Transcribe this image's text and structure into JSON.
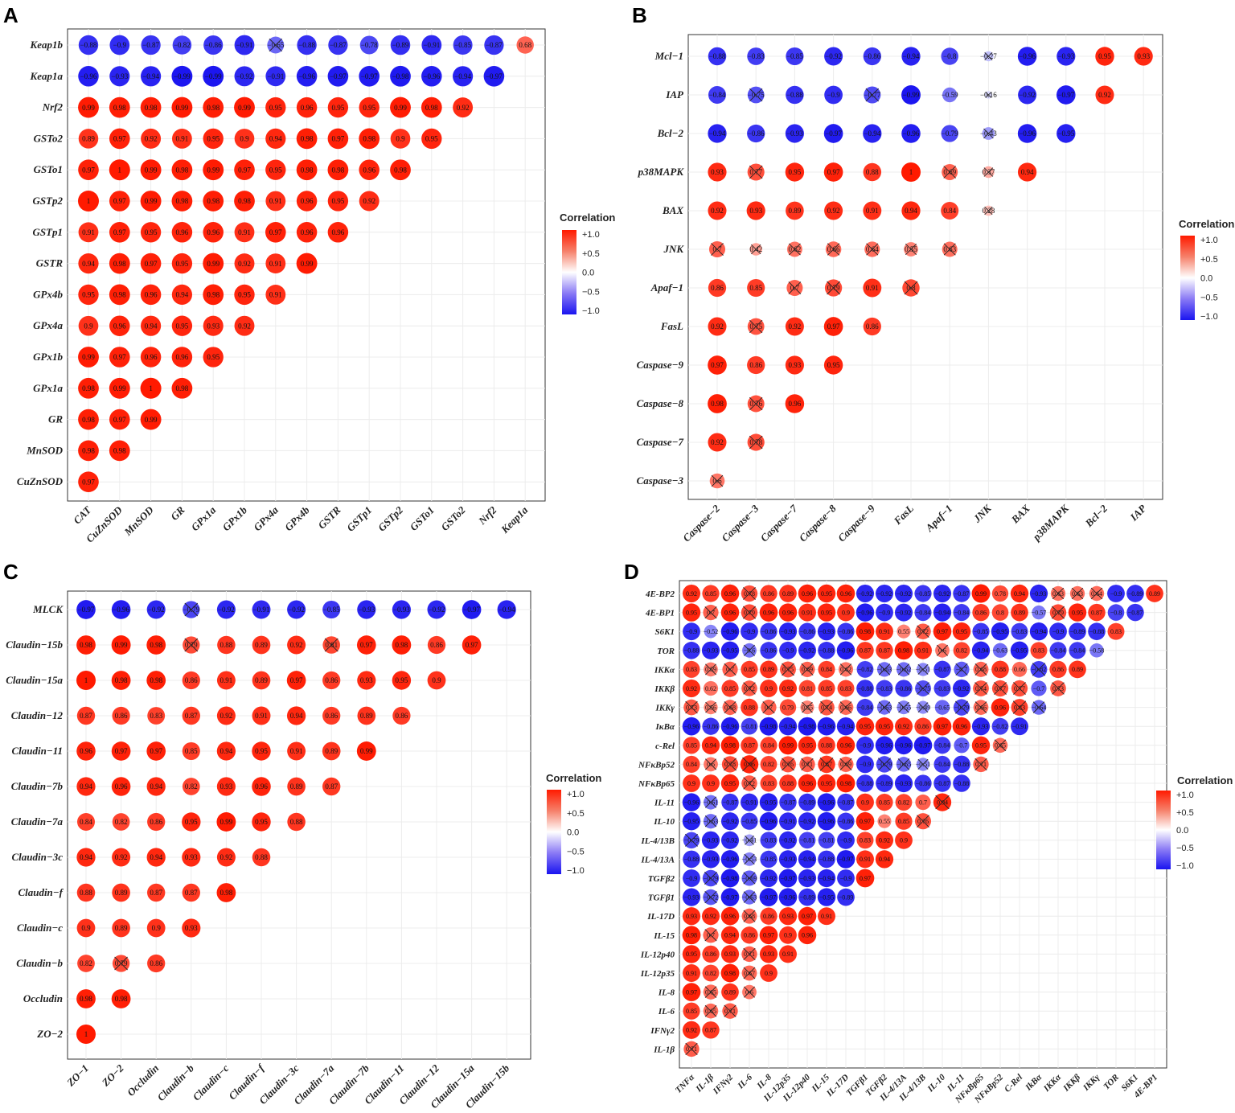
{
  "chart_data": [
    {
      "panel": "A",
      "type": "heatmap",
      "title": "",
      "legend_title": "Correlation",
      "legend_ticks": [
        "+1.0",
        "+0.5",
        "0.0",
        "−0.5",
        "−1.0"
      ],
      "rows": [
        "Keap1b",
        "Keap1a",
        "Nrf2",
        "GSTo2",
        "GSTo1",
        "GSTp2",
        "GSTp1",
        "GSTR",
        "GPx4b",
        "GPx4a",
        "GPx1b",
        "GPx1a",
        "GR",
        "MnSOD",
        "CuZnSOD"
      ],
      "cols": [
        "CAT",
        "CuZnSOD",
        "MnSOD",
        "GR",
        "GPx1a",
        "GPx1b",
        "GPx4a",
        "GPx4b",
        "GSTR",
        "GSTp1",
        "GSTp2",
        "GSTo1",
        "GSTo2",
        "Nrf2",
        "Keap1a"
      ],
      "values": [
        [
          -0.88,
          -0.9,
          -0.87,
          -0.82,
          -0.86,
          -0.91,
          -0.65,
          -0.88,
          -0.87,
          -0.78,
          -0.89,
          -0.91,
          -0.85,
          -0.87,
          0.68
        ],
        [
          -0.96,
          -0.93,
          -0.94,
          -0.99,
          -0.99,
          -0.92,
          -0.91,
          -0.96,
          -0.97,
          -0.97,
          -0.98,
          -0.96,
          -0.94,
          -0.97
        ],
        [
          0.99,
          0.98,
          0.98,
          0.99,
          0.98,
          0.99,
          0.95,
          0.96,
          0.95,
          0.95,
          0.99,
          0.98,
          0.92
        ],
        [
          0.89,
          0.97,
          0.92,
          0.91,
          0.95,
          0.9,
          0.94,
          0.98,
          0.97,
          0.98,
          0.9,
          0.95
        ],
        [
          0.97,
          1,
          0.99,
          0.98,
          0.99,
          0.97,
          0.95,
          0.98,
          0.98,
          0.96,
          0.98
        ],
        [
          1,
          0.97,
          0.99,
          0.98,
          0.98,
          0.98,
          0.91,
          0.96,
          0.95,
          0.92
        ],
        [
          0.91,
          0.97,
          0.95,
          0.96,
          0.96,
          0.91,
          0.97,
          0.96,
          0.96
        ],
        [
          0.94,
          0.98,
          0.97,
          0.95,
          0.99,
          0.92,
          0.91,
          0.99
        ],
        [
          0.95,
          0.98,
          0.96,
          0.94,
          0.98,
          0.95,
          0.91
        ],
        [
          0.9,
          0.96,
          0.94,
          0.95,
          0.93,
          0.92
        ],
        [
          0.99,
          0.97,
          0.96,
          0.96,
          0.95
        ],
        [
          0.98,
          0.99,
          1,
          0.98
        ],
        [
          0.98,
          0.97,
          0.99
        ],
        [
          0.98,
          0.98
        ],
        [
          0.97
        ]
      ],
      "crossed": [
        [
          6
        ],
        [],
        [],
        [],
        [],
        [],
        [],
        [],
        [],
        [],
        [],
        [],
        [],
        [],
        []
      ]
    },
    {
      "panel": "B",
      "type": "heatmap",
      "title": "",
      "legend_title": "Correlation",
      "legend_ticks": [
        "+1.0",
        "+0.5",
        "0.0",
        "−0.5",
        "−1.0"
      ],
      "rows": [
        "Mcl−1",
        "IAP",
        "Bcl−2",
        "p38MAPK",
        "BAX",
        "JNK",
        "Apaf−1",
        "FasL",
        "Caspase−9",
        "Caspase−8",
        "Caspase−7",
        "Caspase−3"
      ],
      "cols": [
        "Caspase−2",
        "Caspase−3",
        "Caspase−7",
        "Caspase−8",
        "Caspase−9",
        "FasL",
        "Apaf−1",
        "JNK",
        "BAX",
        "p38MAPK",
        "Bcl−2",
        "IAP"
      ],
      "values": [
        [
          -0.88,
          -0.83,
          -0.85,
          -0.92,
          -0.86,
          -0.94,
          -0.8,
          -0.27,
          -0.96,
          -0.93,
          0.95,
          0.93
        ],
        [
          -0.84,
          -0.75,
          -0.88,
          -0.9,
          -0.77,
          -0.99,
          -0.59,
          -0.16,
          -0.92,
          -0.97,
          0.92
        ],
        [
          -0.94,
          -0.86,
          -0.93,
          -0.97,
          -0.94,
          -0.96,
          -0.79,
          -0.43,
          -0.96,
          -0.95
        ],
        [
          0.93,
          0.77,
          0.95,
          0.97,
          0.88,
          1,
          0.69,
          0.37,
          0.94
        ],
        [
          0.92,
          0.93,
          0.89,
          0.92,
          0.91,
          0.94,
          0.84,
          0.28
        ],
        [
          0.7,
          0.42,
          0.62,
          0.66,
          0.64,
          0.55,
          0.63
        ],
        [
          0.86,
          0.85,
          0.7,
          0.79,
          0.91,
          0.8
        ],
        [
          0.92,
          0.75,
          0.92,
          0.97,
          0.86
        ],
        [
          0.97,
          0.86,
          0.93,
          0.95
        ],
        [
          0.98,
          0.76,
          0.96
        ],
        [
          0.92,
          0.78
        ],
        [
          0.6
        ]
      ],
      "crossed": [
        [
          7
        ],
        [
          1,
          4,
          7
        ],
        [
          7
        ],
        [
          1,
          6,
          7
        ],
        [
          7
        ],
        [
          0,
          1,
          2,
          3,
          4,
          5,
          6
        ],
        [
          2,
          3,
          5
        ],
        [
          1
        ],
        [],
        [
          1
        ],
        [
          1
        ],
        [
          0
        ]
      ]
    },
    {
      "panel": "C",
      "type": "heatmap",
      "title": "",
      "legend_title": "Correlation",
      "legend_ticks": [
        "+1.0",
        "+0.5",
        "0.0",
        "−0.5",
        "−1.0"
      ],
      "rows": [
        "MLCK",
        "Claudin−15b",
        "Claudin−15a",
        "Claudin−12",
        "Claudin−11",
        "Claudin−7b",
        "Claudin−7a",
        "Claudin−3c",
        "Claudin−f",
        "Claudin−c",
        "Claudin−b",
        "Occludin",
        "ZO−2"
      ],
      "cols": [
        "ZO−1",
        "ZO−2",
        "Occludin",
        "Claudin−b",
        "Claudin−c",
        "Claudin−f",
        "Claudin−3c",
        "Claudin−7a",
        "Claudin−7b",
        "Claudin−11",
        "Claudin−12",
        "Claudin−15a",
        "Claudin−15b"
      ],
      "values": [
        [
          -0.97,
          -0.96,
          -0.92,
          -0.79,
          -0.92,
          -0.91,
          -0.92,
          -0.85,
          -0.93,
          -0.93,
          -0.92,
          -0.97,
          -0.94
        ],
        [
          0.98,
          0.99,
          0.98,
          0.79,
          0.88,
          0.89,
          0.92,
          0.81,
          0.97,
          0.98,
          0.86,
          0.97
        ],
        [
          1,
          0.98,
          0.98,
          0.86,
          0.91,
          0.89,
          0.97,
          0.86,
          0.93,
          0.95,
          0.9
        ],
        [
          0.87,
          0.86,
          0.83,
          0.87,
          0.92,
          0.91,
          0.94,
          0.86,
          0.89,
          0.86
        ],
        [
          0.96,
          0.97,
          0.97,
          0.85,
          0.94,
          0.95,
          0.91,
          0.89,
          0.99
        ],
        [
          0.94,
          0.96,
          0.94,
          0.82,
          0.93,
          0.96,
          0.89,
          0.87
        ],
        [
          0.84,
          0.82,
          0.86,
          0.95,
          0.99,
          0.95,
          0.88
        ],
        [
          0.94,
          0.92,
          0.94,
          0.93,
          0.92,
          0.88
        ],
        [
          0.88,
          0.89,
          0.87,
          0.87,
          0.98
        ],
        [
          0.9,
          0.89,
          0.9,
          0.93
        ],
        [
          0.82,
          0.79,
          0.86
        ],
        [
          0.98,
          0.98
        ],
        [
          1
        ]
      ],
      "crossed": [
        [
          3
        ],
        [
          3,
          7
        ],
        [],
        [],
        [],
        [],
        [],
        [],
        [],
        [],
        [
          1
        ],
        [],
        []
      ]
    },
    {
      "panel": "D",
      "type": "heatmap",
      "title": "",
      "legend_title": "Correlation",
      "legend_ticks": [
        "+1.0",
        "+0.5",
        "0.0",
        "−0.5",
        "−1.0"
      ],
      "rows": [
        "4E-BP2",
        "4E-BP1",
        "S6K1",
        "TOR",
        "IKKα",
        "IKKβ",
        "IKKγ",
        "IκBα",
        "c-Rel",
        "NFκBp52",
        "NFκBp65",
        "IL-11",
        "IL-10",
        "IL-4/13B",
        "IL-4/13A",
        "TGFβ2",
        "TGFβ1",
        "IL-17D",
        "IL-15",
        "IL-12p40",
        "IL-12p35",
        "IL-8",
        "IL-6",
        "IFNγ2",
        "IL-1β"
      ],
      "cols": [
        "TNFα",
        "IL-1β",
        "IFNγ2",
        "IL-6",
        "IL-8",
        "IL-12p35",
        "IL-12p40",
        "IL-15",
        "IL-17D",
        "TGFβ1",
        "TGFβ2",
        "IL-4/13A",
        "IL-4/13B",
        "IL-10",
        "IL-11",
        "NFκBp65",
        "NFκBp52",
        "C-Rel",
        "IkΒα",
        "IKKα",
        "IKKβ",
        "IKKγ",
        "TOR",
        "S6K1",
        "4E-BP1"
      ],
      "values": [
        [
          0.92,
          0.85,
          0.96,
          0.78,
          0.86,
          0.89,
          0.96,
          0.95,
          0.96,
          -0.92,
          -0.92,
          -0.92,
          -0.85,
          -0.92,
          -0.87,
          0.99,
          0.78,
          0.94,
          -0.93,
          0.63,
          0.63,
          0.64,
          -0.9,
          -0.89,
          0.89
        ],
        [
          0.95,
          0.7,
          0.96,
          0.79,
          0.96,
          0.96,
          0.91,
          0.95,
          0.9,
          -0.96,
          -0.9,
          -0.92,
          -0.84,
          -0.94,
          -0.84,
          0.86,
          0.8,
          0.89,
          -0.57,
          0.79,
          0.95,
          0.87,
          -0.8,
          -0.87
        ],
        [
          -0.9,
          -0.52,
          -0.96,
          -0.9,
          -0.86,
          -0.93,
          -0.86,
          -0.93,
          -0.86,
          0.98,
          0.91,
          0.55,
          0.72,
          0.97,
          0.95,
          -0.85,
          -0.95,
          -0.83,
          -0.94,
          -0.9,
          -0.89,
          -0.88,
          0.83
        ],
        [
          -0.88,
          -0.93,
          -0.95,
          -0.6,
          -0.86,
          -0.9,
          -0.92,
          -0.88,
          -0.96,
          0.87,
          0.87,
          0.98,
          0.91,
          0.6,
          0.82,
          -0.94,
          -0.63,
          -0.95,
          0.83,
          -0.84,
          -0.84,
          -0.58
        ],
        [
          0.83,
          0.59,
          0.7,
          0.85,
          0.89,
          0.75,
          0.69,
          0.84,
          0.62,
          -0.82,
          -0.63,
          -0.62,
          -0.51,
          -0.87,
          -0.7,
          0.68,
          0.88,
          0.66,
          -0.82,
          0.86,
          0.89
        ],
        [
          0.92,
          0.62,
          0.85,
          0.72,
          0.9,
          0.92,
          0.81,
          0.85,
          0.83,
          -0.88,
          -0.83,
          -0.86,
          -0.75,
          -0.83,
          -0.92,
          0.74,
          0.77,
          0.77,
          -0.7,
          0.73
        ],
        [
          0.73,
          0.56,
          0.68,
          0.88,
          0.7,
          0.79,
          0.55,
          0.74,
          0.66,
          -0.84,
          -0.63,
          -0.55,
          -0.49,
          -0.65,
          -0.79,
          0.66,
          0.96,
          0.83,
          -0.64
        ],
        [
          -0.96,
          -0.86,
          -0.96,
          -0.81,
          -0.98,
          -0.94,
          -0.98,
          -0.96,
          -0.94,
          0.95,
          0.95,
          0.92,
          0.86,
          0.97,
          0.96,
          -0.93,
          -0.82,
          -0.91
        ],
        [
          0.85,
          0.94,
          0.98,
          0.87,
          0.84,
          0.99,
          0.95,
          0.88,
          0.96,
          -0.9,
          -0.96,
          -0.96,
          -0.97,
          -0.84,
          -0.7,
          0.95,
          0.65
        ],
        [
          0.84,
          0.6,
          0.78,
          0.96,
          0.82,
          0.76,
          0.71,
          0.87,
          0.69,
          -0.9,
          -0.79,
          -0.65,
          -0.51,
          -0.84,
          -0.88,
          0.71
        ],
        [
          0.9,
          0.9,
          0.95,
          0.72,
          0.83,
          0.88,
          0.96,
          0.95,
          0.98,
          -0.88,
          -0.89,
          -0.93,
          -0.86,
          -0.87,
          -0.88
        ],
        [
          -0.96,
          -0.61,
          -0.87,
          -0.91,
          -0.95,
          -0.87,
          -0.89,
          -0.96,
          -0.87,
          0.9,
          0.85,
          0.82,
          0.7,
          0.94
        ],
        [
          -0.95,
          -0.63,
          -0.92,
          -0.85,
          -0.96,
          -0.91,
          -0.92,
          -0.96,
          -0.86,
          0.97,
          0.55,
          0.85,
          0.76
        ],
        [
          -0.79,
          -0.93,
          -0.92,
          -0.41,
          -0.83,
          -0.92,
          -0.81,
          -0.81,
          -0.9,
          0.83,
          0.92,
          0.9
        ],
        [
          -0.88,
          -0.93,
          -0.96,
          -0.53,
          -0.85,
          -0.93,
          -0.94,
          -0.88,
          -0.97,
          0.91,
          0.94
        ],
        [
          -0.9,
          -0.79,
          -0.98,
          -0.69,
          -0.92,
          -0.97,
          -0.93,
          -0.94,
          -0.9,
          0.97
        ],
        [
          -0.93,
          -0.72,
          -0.97,
          -0.63,
          -0.97,
          -0.96,
          -0.89,
          -0.95,
          -0.89
        ],
        [
          0.93,
          0.92,
          0.96,
          0.68,
          0.86,
          0.93,
          0.97,
          0.91
        ],
        [
          0.98,
          0.7,
          0.94,
          0.86,
          0.97,
          0.9,
          0.96
        ],
        [
          0.95,
          0.86,
          0.93,
          0.71,
          0.93,
          0.91
        ],
        [
          0.91,
          0.82,
          0.98,
          0.67,
          0.9
        ],
        [
          0.97,
          0.65,
          0.89,
          0.6
        ],
        [
          0.85,
          0.65,
          0.71
        ],
        [
          0.92,
          0.87
        ],
        [
          0.71
        ]
      ],
      "crossed": [
        [
          3,
          19,
          20,
          21
        ],
        [
          1,
          3,
          19
        ],
        [
          12
        ],
        [
          3,
          13
        ],
        [
          1,
          2,
          5,
          6,
          8,
          10,
          11,
          12,
          14,
          15,
          18
        ],
        [
          3,
          12,
          15,
          16,
          17,
          19
        ],
        [
          0,
          1,
          2,
          4,
          6,
          7,
          8,
          10,
          11,
          12,
          14,
          15,
          17,
          18
        ],
        [],
        [
          16
        ],
        [
          1,
          2,
          3,
          5,
          6,
          7,
          8,
          10,
          11,
          12,
          15
        ],
        [
          3
        ],
        [
          1,
          13
        ],
        [
          1,
          12
        ],
        [
          0,
          3
        ],
        [
          3
        ],
        [
          1,
          3
        ],
        [
          1,
          3
        ],
        [
          3
        ],
        [
          1
        ],
        [
          3
        ],
        [
          3
        ],
        [
          1,
          3
        ],
        [
          1,
          2
        ],
        [],
        [
          0
        ]
      ]
    }
  ]
}
